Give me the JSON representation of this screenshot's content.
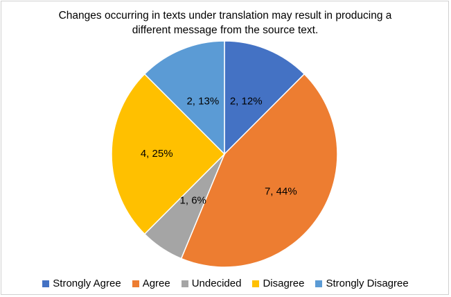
{
  "chart_data": {
    "type": "pie",
    "title": "Changes occurring in texts under translation may result in producing a different message from the source text.",
    "categories": [
      "Strongly Agree",
      "Agree",
      "Undecided",
      "Disagree",
      "Strongly Disagree"
    ],
    "values": [
      2,
      7,
      1,
      4,
      2
    ],
    "value_labels": [
      "2, 12%",
      "7, 44%",
      "1, 6%",
      "4, 25%",
      "2, 13%"
    ],
    "colors": [
      "#4472c4",
      "#ed7d31",
      "#a5a5a5",
      "#ffc000",
      "#5b9bd5"
    ],
    "legend": "bottom"
  }
}
